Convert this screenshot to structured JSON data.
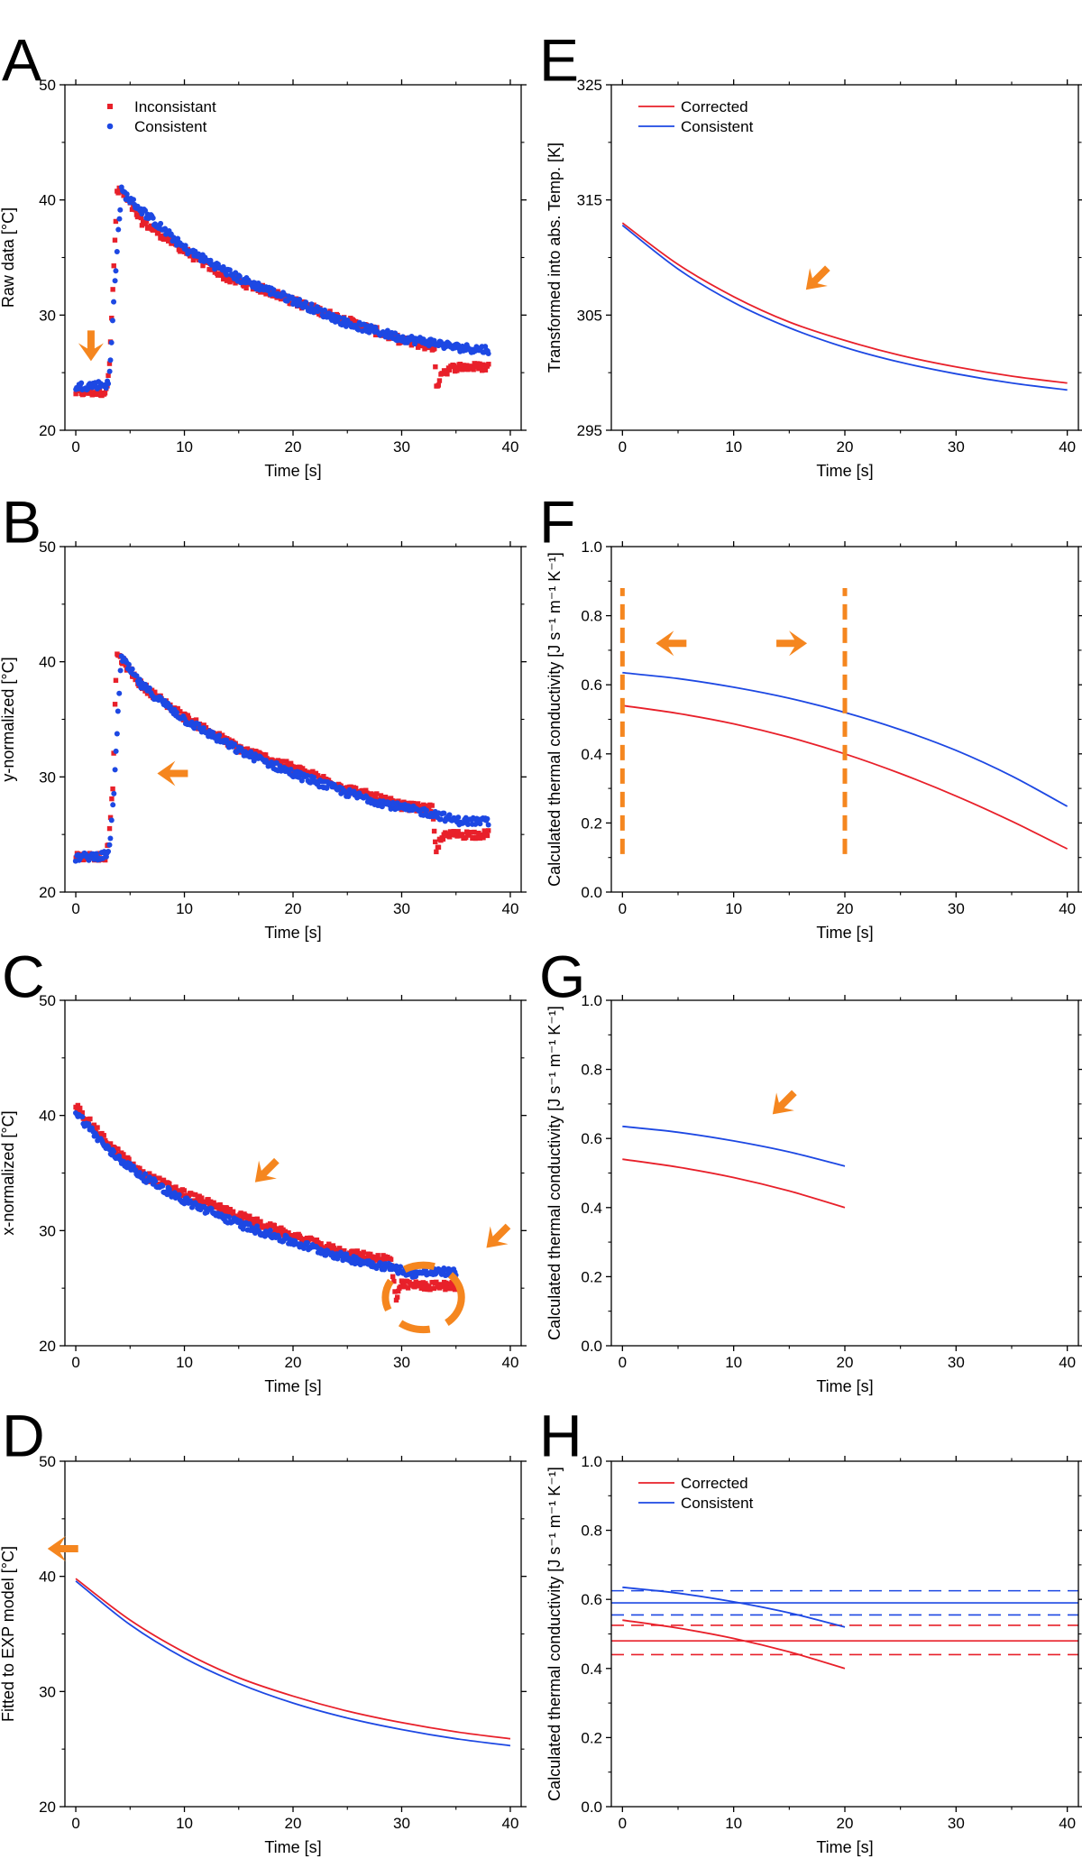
{
  "figure_colors": {
    "series1": "#e8202a",
    "series2": "#1d48e3",
    "annotation": "#f5861f",
    "axis": "#000000"
  },
  "chart_data": [
    {
      "panel": "A",
      "type": "scatter",
      "xlabel": "Time [s]",
      "ylabel": "Raw data [°C]",
      "xlim": [
        -1,
        41
      ],
      "ylim": [
        20,
        50
      ],
      "xticks": [
        "0",
        "10",
        "20",
        "30",
        "40"
      ],
      "yticks": [
        "20",
        "30",
        "40",
        "50"
      ],
      "legend": [
        "Inconsistant",
        "Consistent"
      ],
      "legend_placement": "top-left",
      "series": [
        {
          "name": "Inconsistant",
          "color": "#e8202a",
          "marker": "square",
          "anchors": [
            [
              0,
              23.3
            ],
            [
              2.8,
              23.3
            ],
            [
              3.1,
              26
            ],
            [
              3.5,
              34
            ],
            [
              3.8,
              40.8
            ],
            [
              4.3,
              40.6
            ],
            [
              6,
              38.2
            ],
            [
              10,
              35.6
            ],
            [
              14,
              33.2
            ],
            [
              18,
              32.0
            ],
            [
              20,
              31.2
            ],
            [
              25,
              29.5
            ],
            [
              30,
              27.8
            ],
            [
              33,
              27.2
            ],
            [
              33.2,
              23.5
            ],
            [
              33.6,
              25
            ],
            [
              35,
              25.5
            ],
            [
              38,
              25.5
            ]
          ],
          "noise": 0.35
        },
        {
          "name": "Consistent",
          "color": "#1d48e3",
          "marker": "circle",
          "anchors": [
            [
              0,
              23.8
            ],
            [
              3,
              24
            ],
            [
              3.2,
              26
            ],
            [
              3.6,
              33
            ],
            [
              3.9,
              37
            ],
            [
              4.2,
              40.8
            ],
            [
              5,
              40
            ],
            [
              10,
              35.8
            ],
            [
              15,
              33.2
            ],
            [
              20,
              31.3
            ],
            [
              25,
              29.3
            ],
            [
              30,
              28
            ],
            [
              33,
              27.6
            ],
            [
              35,
              27.2
            ],
            [
              38,
              27
            ]
          ],
          "noise": 0.35
        }
      ],
      "annotations": [
        {
          "kind": "arrow",
          "x": 1.4,
          "y": 26.0,
          "angle": 90
        }
      ]
    },
    {
      "panel": "B",
      "type": "scatter",
      "xlabel": "Time [s]",
      "ylabel": "y-normalized [°C]",
      "xlim": [
        -1,
        41
      ],
      "ylim": [
        20,
        50
      ],
      "xticks": [
        "0",
        "10",
        "20",
        "30",
        "40"
      ],
      "yticks": [
        "20",
        "30",
        "40",
        "50"
      ],
      "series": [
        {
          "name": "Inconsistant",
          "color": "#e8202a",
          "marker": "square",
          "anchors": [
            [
              0,
              23.1
            ],
            [
              2.8,
              23.1
            ],
            [
              3.1,
              25
            ],
            [
              3.4,
              29
            ],
            [
              3.6,
              36
            ],
            [
              3.8,
              40.7
            ],
            [
              6,
              38
            ],
            [
              10,
              35.2
            ],
            [
              15,
              32.5
            ],
            [
              20,
              30.8
            ],
            [
              25,
              29
            ],
            [
              30,
              27.5
            ],
            [
              32.8,
              27.2
            ],
            [
              33.2,
              23.2
            ],
            [
              33.6,
              24.8
            ],
            [
              35,
              25
            ],
            [
              38,
              25
            ]
          ],
          "noise": 0.35
        },
        {
          "name": "Consistent",
          "color": "#1d48e3",
          "marker": "circle",
          "anchors": [
            [
              0,
              23
            ],
            [
              3,
              23.2
            ],
            [
              3.3,
              26
            ],
            [
              3.6,
              30
            ],
            [
              3.9,
              36
            ],
            [
              4.2,
              40.3
            ],
            [
              6,
              38
            ],
            [
              10,
              35
            ],
            [
              15,
              32.3
            ],
            [
              20,
              30.3
            ],
            [
              25,
              28.6
            ],
            [
              30,
              27.3
            ],
            [
              33,
              26.8
            ],
            [
              35,
              26.2
            ],
            [
              38,
              26.1
            ]
          ],
          "noise": 0.35
        }
      ],
      "annotations": [
        {
          "kind": "arrow",
          "x": 7.5,
          "y": 30.3,
          "angle": 180
        }
      ]
    },
    {
      "panel": "C",
      "type": "scatter",
      "xlabel": "Time [s]",
      "ylabel": "x-normalized [°C]",
      "xlim": [
        -1,
        41
      ],
      "ylim": [
        20,
        50
      ],
      "xticks": [
        "0",
        "10",
        "20",
        "30",
        "40"
      ],
      "yticks": [
        "20",
        "30",
        "40",
        "50"
      ],
      "series": [
        {
          "name": "Inconsistant",
          "color": "#e8202a",
          "marker": "square",
          "anchors": [
            [
              0,
              40.8
            ],
            [
              3,
              37.5
            ],
            [
              6,
              35
            ],
            [
              10,
              33.2
            ],
            [
              15,
              31.3
            ],
            [
              20,
              29.5
            ],
            [
              25,
              28
            ],
            [
              29,
              27.5
            ],
            [
              29.5,
              24
            ],
            [
              30,
              25.3
            ],
            [
              32,
              25.2
            ],
            [
              35,
              25.2
            ]
          ],
          "noise": 0.35
        },
        {
          "name": "Consistent",
          "color": "#1d48e3",
          "marker": "circle",
          "anchors": [
            [
              0,
              40.3
            ],
            [
              3,
              37
            ],
            [
              6,
              34.8
            ],
            [
              10,
              32.6
            ],
            [
              15,
              30.6
            ],
            [
              20,
              29
            ],
            [
              25,
              27.6
            ],
            [
              29,
              26.8
            ],
            [
              31,
              26.3
            ],
            [
              34,
              26.4
            ],
            [
              35,
              26.3
            ]
          ],
          "noise": 0.35
        }
      ],
      "annotations": [
        {
          "kind": "arrow",
          "x": 16.5,
          "y": 34.2,
          "angle": 135
        },
        {
          "kind": "arrow",
          "x": 37.8,
          "y": 28.5,
          "angle": 135
        },
        {
          "kind": "dashed-ellipse",
          "cx": 32,
          "cy": 24.2,
          "rx": 3.5,
          "ry": 2.8
        }
      ]
    },
    {
      "panel": "D",
      "type": "line",
      "xlabel": "Time [s]",
      "ylabel": "Fitted to EXP model [°C]",
      "xlim": [
        -1,
        41
      ],
      "ylim": [
        20,
        50
      ],
      "xticks": [
        "0",
        "10",
        "20",
        "30",
        "40"
      ],
      "yticks": [
        "20",
        "30",
        "40",
        "50"
      ],
      "series": [
        {
          "name": "Corrected",
          "color": "#e8202a",
          "x": [
            0,
            5,
            10,
            15,
            20,
            25,
            30,
            35,
            40
          ],
          "y": [
            39.8,
            36.2,
            33.4,
            31.2,
            29.6,
            28.3,
            27.3,
            26.5,
            25.9
          ]
        },
        {
          "name": "Consistent",
          "color": "#1d48e3",
          "x": [
            0,
            5,
            10,
            15,
            20,
            25,
            30,
            35,
            40
          ],
          "y": [
            39.6,
            35.8,
            32.9,
            30.7,
            29.0,
            27.7,
            26.7,
            25.9,
            25.3
          ]
        }
      ],
      "annotations": [
        {
          "kind": "arrow",
          "x": -2.6,
          "y": 42.4,
          "angle": 180,
          "outside": true
        }
      ]
    },
    {
      "panel": "E",
      "type": "line",
      "xlabel": "Time [s]",
      "ylabel": "Transformed into abs. Temp. [K]",
      "xlim": [
        -1,
        41
      ],
      "ylim": [
        295,
        325
      ],
      "xticks": [
        "0",
        "10",
        "20",
        "30",
        "40"
      ],
      "yticks": [
        "295",
        "305",
        "315",
        "325"
      ],
      "legend": [
        "Corrected",
        "Consistent"
      ],
      "legend_placement": "top-left",
      "series": [
        {
          "name": "Corrected",
          "color": "#e8202a",
          "x": [
            0,
            5,
            10,
            15,
            20,
            25,
            30,
            35,
            40
          ],
          "y": [
            313.0,
            309.4,
            306.6,
            304.4,
            302.8,
            301.5,
            300.5,
            299.7,
            299.1
          ]
        },
        {
          "name": "Consistent",
          "color": "#1d48e3",
          "x": [
            0,
            5,
            10,
            15,
            20,
            25,
            30,
            35,
            40
          ],
          "y": [
            312.8,
            309.0,
            306.1,
            303.9,
            302.2,
            300.9,
            299.9,
            299.1,
            298.5
          ]
        }
      ],
      "annotations": [
        {
          "kind": "arrow",
          "x": 16.5,
          "y": 307.2,
          "angle": 135
        }
      ]
    },
    {
      "panel": "F",
      "type": "line",
      "xlabel": "Time [s]",
      "ylabel": "Calculated thermal conductivity [J s⁻¹ m⁻¹ K⁻¹]",
      "xlim": [
        -1,
        41
      ],
      "ylim": [
        0.0,
        1.0
      ],
      "xticks": [
        "0",
        "10",
        "20",
        "30",
        "40"
      ],
      "yticks": [
        "0.0",
        "0.2",
        "0.4",
        "0.6",
        "0.8",
        "1.0"
      ],
      "series": [
        {
          "name": "Corrected",
          "color": "#e8202a",
          "x": [
            0,
            5,
            10,
            15,
            20,
            25,
            30,
            35,
            40
          ],
          "y": [
            0.54,
            0.517,
            0.487,
            0.448,
            0.4,
            0.343,
            0.278,
            0.205,
            0.125
          ]
        },
        {
          "name": "Consistent",
          "color": "#1d48e3",
          "x": [
            0,
            5,
            10,
            15,
            20,
            25,
            30,
            35,
            40
          ],
          "y": [
            0.635,
            0.618,
            0.593,
            0.561,
            0.52,
            0.47,
            0.41,
            0.336,
            0.248
          ]
        }
      ],
      "annotations": [
        {
          "kind": "dashed-vline",
          "x": 0,
          "y0": 0.11,
          "y1": 0.88
        },
        {
          "kind": "dashed-vline",
          "x": 20,
          "y0": 0.11,
          "y1": 0.88
        },
        {
          "kind": "arrow",
          "x": 3.0,
          "y": 0.72,
          "angle": 180
        },
        {
          "kind": "arrow",
          "x": 16.6,
          "y": 0.72,
          "angle": 0
        }
      ]
    },
    {
      "panel": "G",
      "type": "line",
      "xlabel": "Time [s]",
      "ylabel": "Calculated thermal conductivity [J s⁻¹ m⁻¹ K⁻¹]",
      "xlim": [
        -1,
        41
      ],
      "ylim": [
        0.0,
        1.0
      ],
      "xticks": [
        "0",
        "10",
        "20",
        "30",
        "40"
      ],
      "yticks": [
        "0.0",
        "0.2",
        "0.4",
        "0.6",
        "0.8",
        "1.0"
      ],
      "series": [
        {
          "name": "Corrected",
          "color": "#e8202a",
          "x": [
            0,
            5,
            10,
            15,
            20
          ],
          "y": [
            0.54,
            0.517,
            0.487,
            0.448,
            0.4
          ]
        },
        {
          "name": "Consistent",
          "color": "#1d48e3",
          "x": [
            0,
            5,
            10,
            15,
            20
          ],
          "y": [
            0.635,
            0.618,
            0.593,
            0.561,
            0.52
          ]
        }
      ],
      "annotations": [
        {
          "kind": "arrow",
          "x": 13.5,
          "y": 0.67,
          "angle": 135
        }
      ]
    },
    {
      "panel": "H",
      "type": "line",
      "xlabel": "Time [s]",
      "ylabel": "Calculated thermal conductivity [J s⁻¹ m⁻¹ K⁻¹]",
      "xlim": [
        -1,
        41
      ],
      "ylim": [
        0.0,
        1.0
      ],
      "xticks": [
        "0",
        "10",
        "20",
        "30",
        "40"
      ],
      "yticks": [
        "0.0",
        "0.2",
        "0.4",
        "0.6",
        "0.8",
        "1.0"
      ],
      "legend": [
        "Corrected",
        "Consistent"
      ],
      "legend_placement": "top-left",
      "series": [
        {
          "name": "Corrected",
          "color": "#e8202a",
          "x": [
            0,
            5,
            10,
            15,
            20
          ],
          "y": [
            0.54,
            0.517,
            0.487,
            0.448,
            0.4
          ]
        },
        {
          "name": "Consistent",
          "color": "#1d48e3",
          "x": [
            0,
            5,
            10,
            15,
            20
          ],
          "y": [
            0.635,
            0.618,
            0.593,
            0.561,
            0.52
          ]
        }
      ],
      "hlines": [
        {
          "color": "#1d48e3",
          "y": 0.59,
          "style": "solid"
        },
        {
          "color": "#1d48e3",
          "y": 0.625,
          "style": "dashed"
        },
        {
          "color": "#1d48e3",
          "y": 0.555,
          "style": "dashed"
        },
        {
          "color": "#e8202a",
          "y": 0.48,
          "style": "solid"
        },
        {
          "color": "#e8202a",
          "y": 0.525,
          "style": "dashed"
        },
        {
          "color": "#e8202a",
          "y": 0.44,
          "style": "dashed"
        }
      ]
    }
  ]
}
